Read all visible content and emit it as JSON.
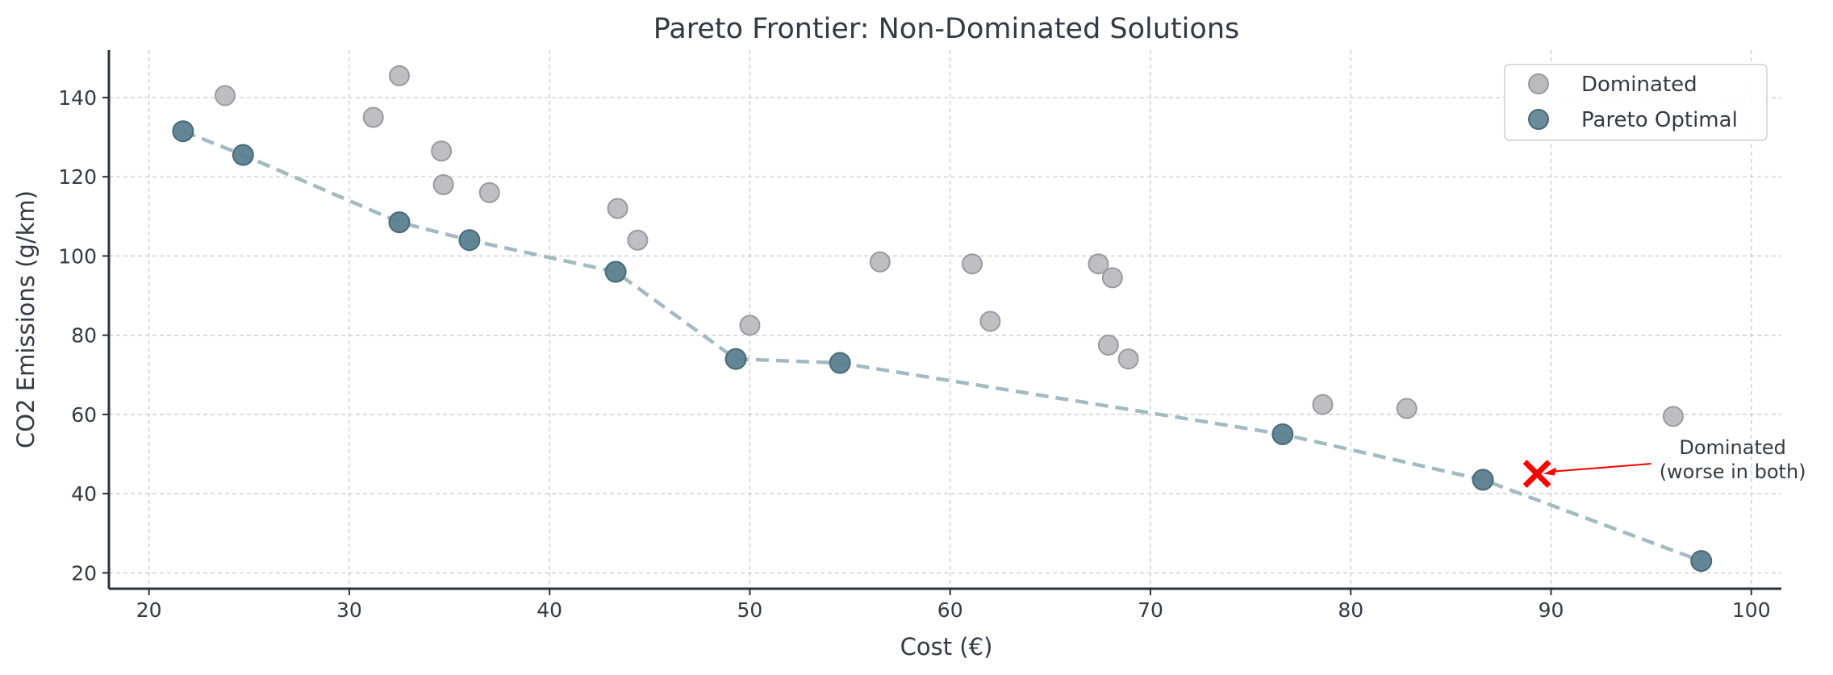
{
  "chart_data": {
    "type": "scatter",
    "title": "Pareto Frontier: Non-Dominated Solutions",
    "xlabel": "Cost (€)",
    "ylabel": "CO2 Emissions (g/km)",
    "xlim": [
      18,
      101.5
    ],
    "ylim": [
      16,
      152
    ],
    "xticks": [
      20,
      30,
      40,
      50,
      60,
      70,
      80,
      90,
      100
    ],
    "yticks": [
      20,
      40,
      60,
      80,
      100,
      120,
      140
    ],
    "grid": true,
    "legend_position": "top-right",
    "series": [
      {
        "name": "Dominated",
        "color": "#b3b3b8",
        "points": [
          [
            23.8,
            140.5
          ],
          [
            32.5,
            145.5
          ],
          [
            31.2,
            135
          ],
          [
            34.6,
            126.5
          ],
          [
            34.7,
            118
          ],
          [
            37.0,
            116
          ],
          [
            43.4,
            112
          ],
          [
            44.4,
            104
          ],
          [
            50.0,
            82.5
          ],
          [
            56.5,
            98.5
          ],
          [
            61.1,
            98
          ],
          [
            62.0,
            83.5
          ],
          [
            67.4,
            98
          ],
          [
            68.1,
            94.5
          ],
          [
            67.9,
            77.5
          ],
          [
            68.9,
            74
          ],
          [
            78.6,
            62.5
          ],
          [
            82.8,
            61.5
          ],
          [
            96.1,
            59.5
          ]
        ]
      },
      {
        "name": "Pareto Optimal",
        "color": "#5a8090",
        "points": [
          [
            21.7,
            131.5
          ],
          [
            24.7,
            125.5
          ],
          [
            32.5,
            108.5
          ],
          [
            36.0,
            104
          ],
          [
            43.3,
            96
          ],
          [
            49.3,
            74
          ],
          [
            54.5,
            73
          ],
          [
            76.6,
            55
          ],
          [
            86.6,
            43.5
          ],
          [
            97.5,
            23
          ]
        ]
      }
    ],
    "frontier_line": {
      "color": "#a2bac2",
      "style": "dashed"
    },
    "highlight": {
      "x": 89.3,
      "y": 45,
      "color": "#ff0000",
      "marker": "x"
    },
    "annotation": {
      "lines": [
        "Dominated",
        "(worse in both)"
      ],
      "text_at": [
        95,
        50
      ],
      "points_to": [
        89.3,
        45
      ],
      "color": "#ff0000"
    }
  }
}
